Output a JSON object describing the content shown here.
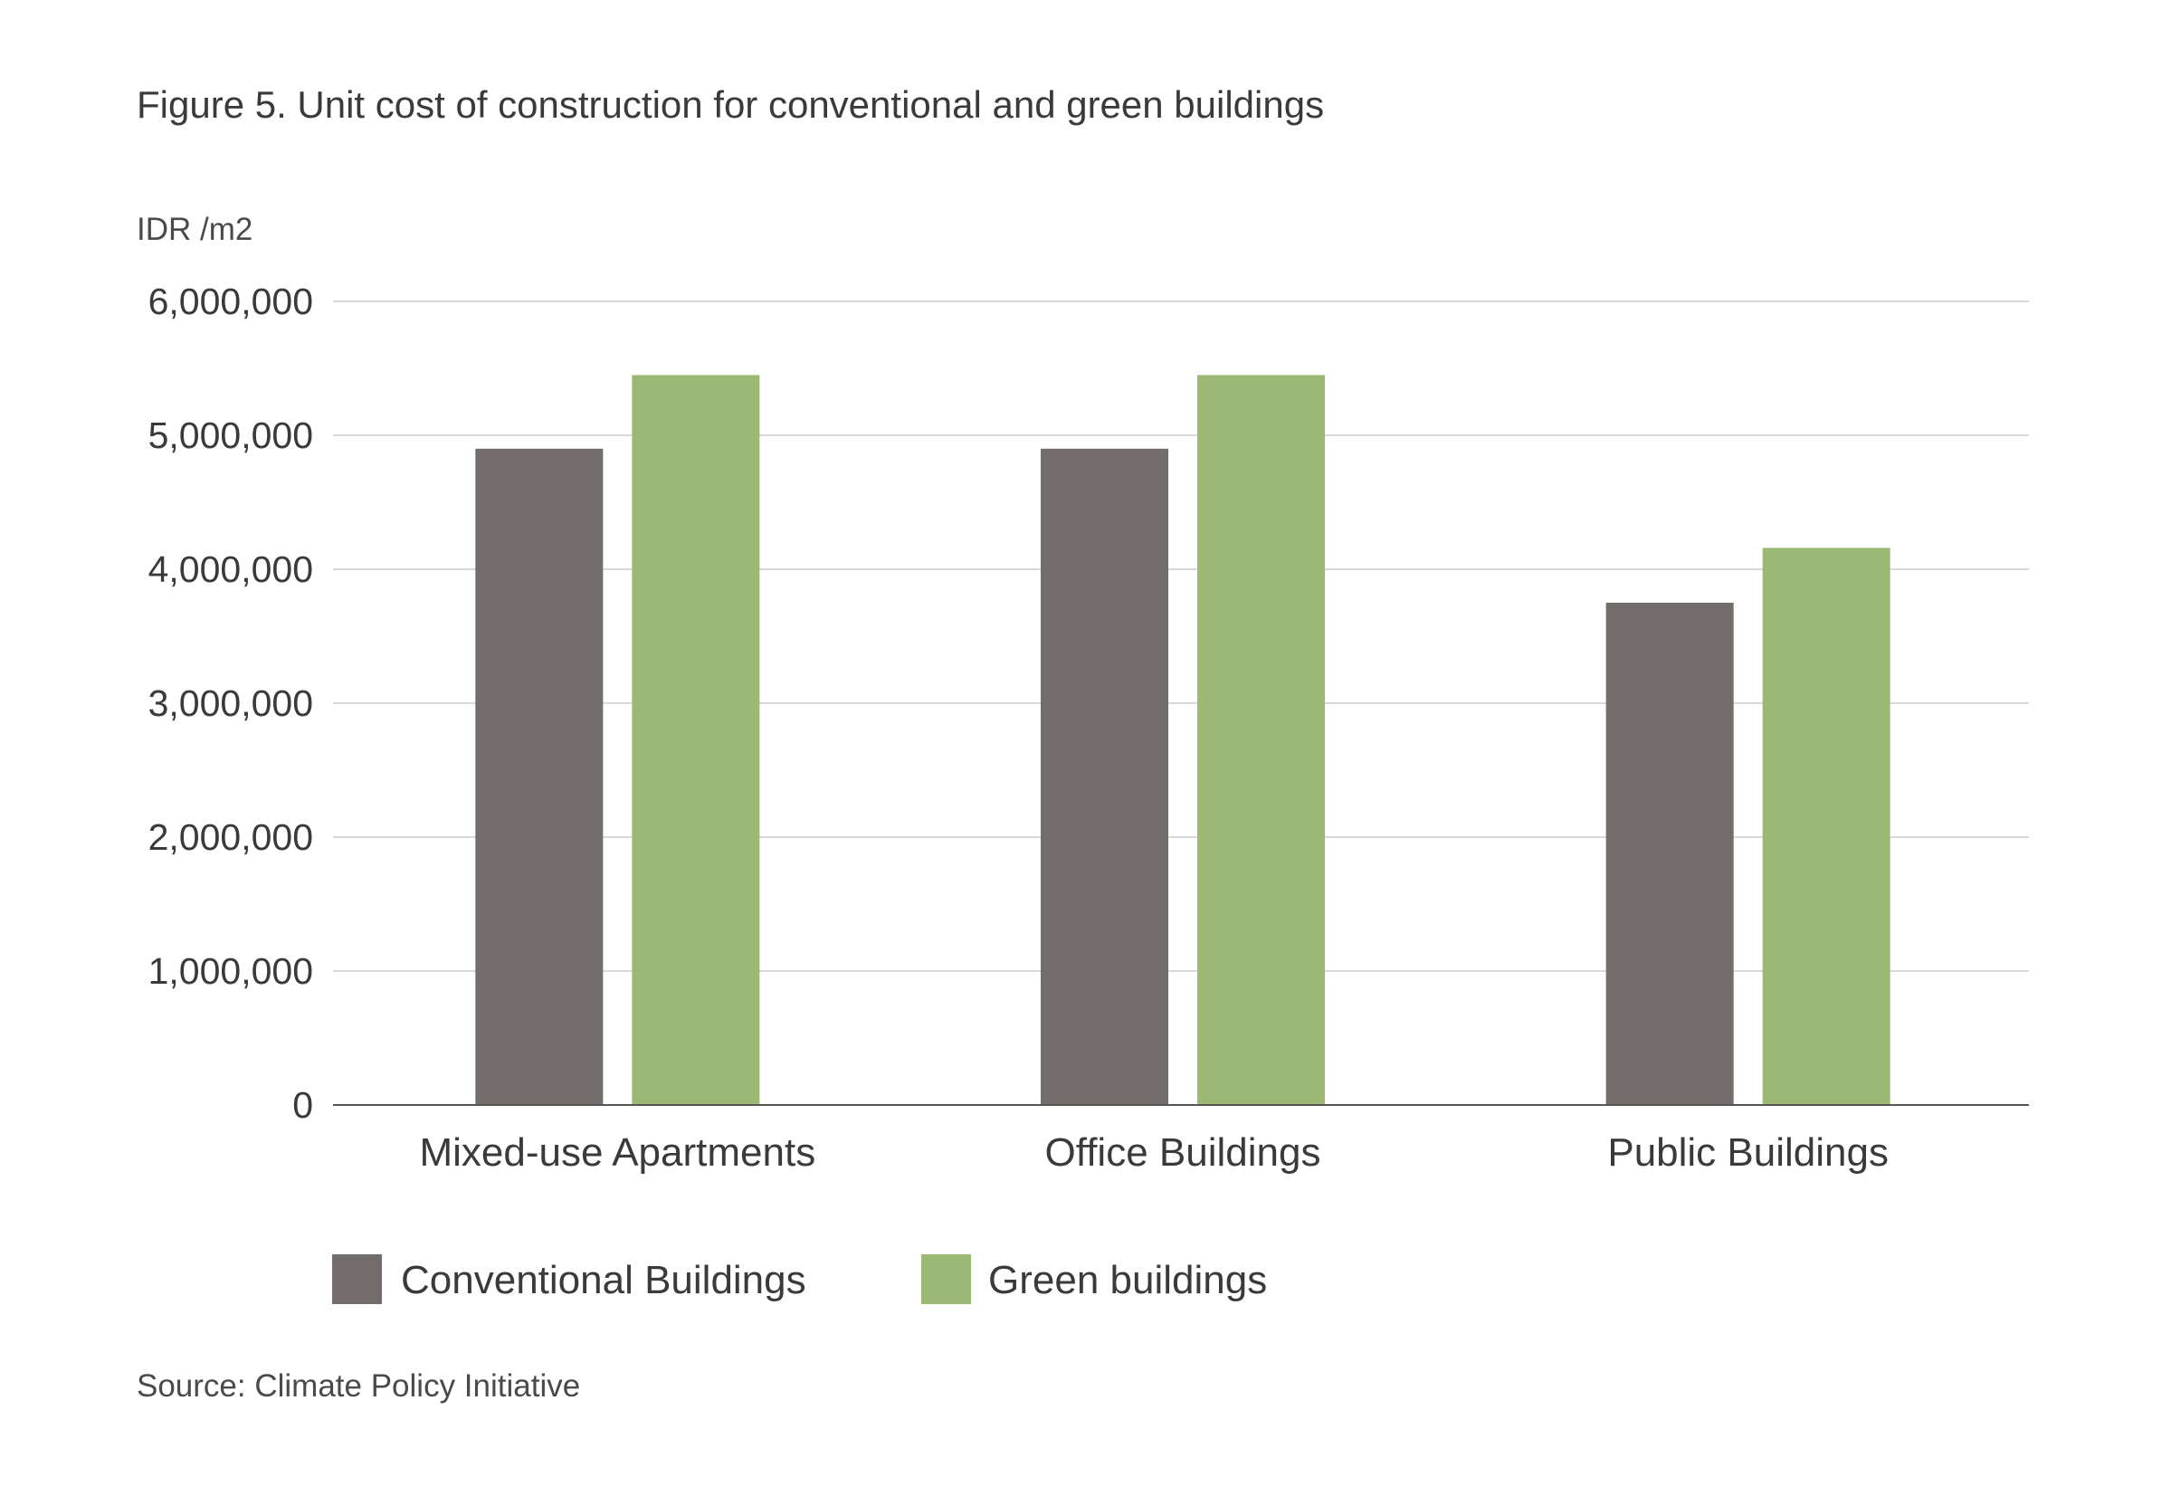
{
  "figure": {
    "title": "Figure 5. Unit cost of construction for conventional and green buildings",
    "unit_label": "IDR /m2",
    "source": "Source: Climate Policy Initiative"
  },
  "colors": {
    "conventional": "#726d6b",
    "green": "#9bb974",
    "grid": "#d9d9d9",
    "axis": "#555555"
  },
  "chart_data": {
    "type": "bar",
    "title": "Figure 5. Unit cost of construction for conventional and green buildings",
    "xlabel": "",
    "ylabel": "IDR /m2",
    "ylim": [
      0,
      6000000
    ],
    "yticks": [
      0,
      1000000,
      2000000,
      3000000,
      4000000,
      5000000,
      6000000
    ],
    "ytick_labels": [
      "0",
      "1,000,000",
      "2,000,000",
      "3,000,000",
      "4,000,000",
      "5,000,000",
      "6,000,000"
    ],
    "grid": true,
    "legend_position": "bottom-left",
    "categories": [
      "Mixed-use Apartments",
      "Office Buildings",
      "Public Buildings"
    ],
    "series": [
      {
        "name": "Conventional Buildings",
        "color": "#726d6b",
        "values": [
          4900000,
          4900000,
          3750000
        ]
      },
      {
        "name": "Green buildings",
        "color": "#9bb974",
        "values": [
          5450000,
          5450000,
          4160000
        ]
      }
    ]
  }
}
